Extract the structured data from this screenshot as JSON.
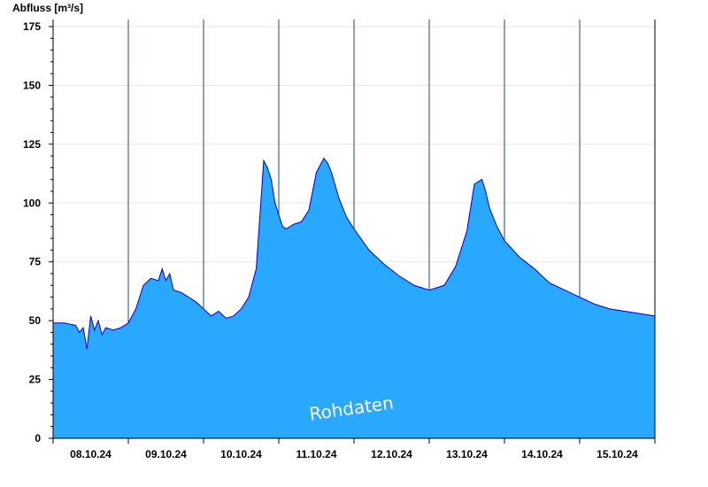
{
  "chart_data": {
    "type": "area",
    "ylabel": "Abfluss [m³/s]",
    "watermark": "Rohdaten",
    "ylim": [
      0,
      178
    ],
    "xlim": [
      0,
      8
    ],
    "y_ticks": [
      0,
      25,
      50,
      75,
      100,
      125,
      150,
      175
    ],
    "x_ticks": [
      "08.10.24",
      "09.10.24",
      "10.10.24",
      "11.10.24",
      "12.10.24",
      "13.10.24",
      "14.10.24",
      "15.10.24"
    ],
    "grid": true,
    "fill_color": "#29a8ff",
    "line_color": "#0000cc",
    "series": [
      {
        "x": [
          0,
          0.15,
          0.3,
          0.35,
          0.4,
          0.45,
          0.5,
          0.55,
          0.6,
          0.65,
          0.7,
          0.8,
          0.9,
          1.0,
          1.1,
          1.2,
          1.3,
          1.4,
          1.45,
          1.5,
          1.55,
          1.6,
          1.7,
          1.8,
          1.9,
          2.0,
          2.1,
          2.2,
          2.3,
          2.4,
          2.5,
          2.6,
          2.7,
          2.8,
          2.85,
          2.9,
          2.95,
          3.0,
          3.05,
          3.1,
          3.2,
          3.3,
          3.4,
          3.5,
          3.6,
          3.65,
          3.7,
          3.8,
          3.9,
          4.0,
          4.2,
          4.4,
          4.6,
          4.8,
          5.0,
          5.2,
          5.35,
          5.5,
          5.6,
          5.7,
          5.75,
          5.8,
          5.9,
          6.0,
          6.2,
          6.4,
          6.6,
          6.8,
          7.0,
          7.2,
          7.4,
          7.6,
          7.8,
          8.0
        ],
        "y": [
          49,
          49,
          48,
          45,
          47,
          38,
          52,
          46,
          50,
          44,
          47,
          46,
          47,
          49,
          55,
          65,
          68,
          67,
          72,
          67,
          70,
          63,
          62,
          60,
          58,
          55,
          52,
          54,
          51,
          52,
          55,
          60,
          72,
          118,
          115,
          110,
          100,
          95,
          90,
          89,
          91,
          92,
          97,
          113,
          119,
          117,
          113,
          102,
          94,
          89,
          80,
          74,
          69,
          65,
          63,
          65,
          73,
          88,
          108,
          110,
          105,
          98,
          90,
          84,
          77,
          72,
          66,
          63,
          60,
          57,
          55,
          54,
          53,
          52
        ]
      }
    ]
  }
}
